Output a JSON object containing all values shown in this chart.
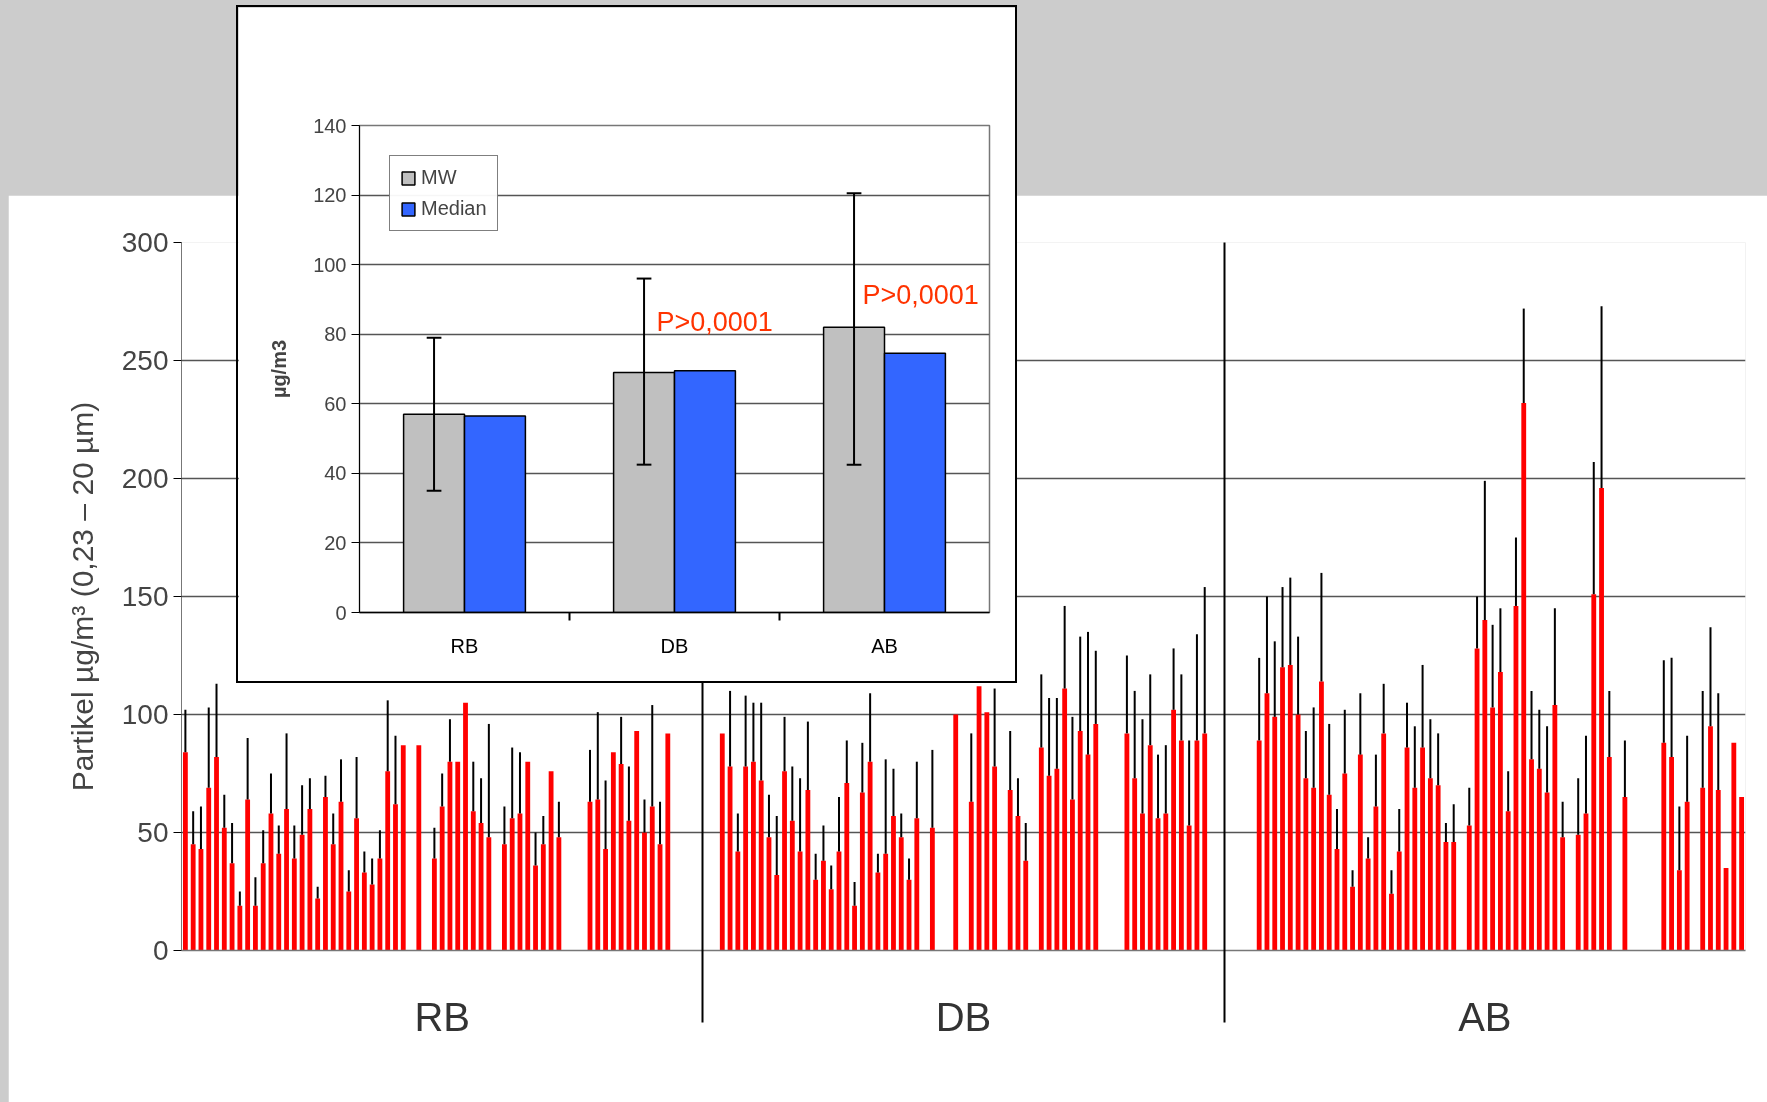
{
  "chart_data": [
    {
      "type": "bar",
      "ylabel": "Partikel µg/m³ (0,23 – 20 µm)",
      "categories": [
        "RB",
        "DB",
        "AB"
      ],
      "ylim": [
        0,
        300
      ],
      "yticks": [
        0,
        50,
        100,
        150,
        200,
        250,
        300
      ],
      "grid": "y",
      "series": [
        {
          "color": "#ff0000",
          "values": [
            84,
            null,
            null
          ],
          "errors": [
            [
              84,
              102
            ],
            null,
            null
          ]
        },
        {
          "color": "#ff0000",
          "values": [
            45,
            null,
            null
          ],
          "errors": [
            [
              45,
              59
            ],
            null,
            null
          ]
        },
        {
          "color": "#ff0000",
          "values": [
            43,
            92,
            null
          ],
          "errors": [
            [
              43,
              61
            ],
            null,
            null
          ]
        },
        {
          "color": "#ff0000",
          "values": [
            69,
            78,
            null
          ],
          "errors": [
            [
              69,
              103
            ],
            [
              78,
              110
            ],
            null
          ]
        },
        {
          "color": "#ff0000",
          "values": [
            82,
            42,
            89
          ],
          "errors": [
            [
              82,
              113
            ],
            [
              42,
              58
            ],
            [
              89,
              124
            ]
          ]
        },
        {
          "color": "#ff0000",
          "values": [
            52,
            78,
            109
          ],
          "errors": [
            [
              52,
              66
            ],
            [
              78,
              108
            ],
            [
              109,
              150
            ]
          ]
        },
        {
          "color": "#ff0000",
          "values": [
            37,
            80,
            99
          ],
          "errors": [
            [
              37,
              54
            ],
            [
              80,
              105
            ],
            [
              99,
              131
            ]
          ]
        },
        {
          "color": "#ff0000",
          "values": [
            19,
            72,
            120
          ],
          "errors": [
            [
              19,
              25
            ],
            [
              72,
              105
            ],
            [
              120,
              154
            ]
          ]
        },
        {
          "color": "#ff0000",
          "values": [
            64,
            48,
            121
          ],
          "errors": [
            [
              64,
              90
            ],
            [
              48,
              66
            ],
            [
              121,
              158
            ]
          ]
        },
        {
          "color": "#ff0000",
          "values": [
            19,
            32,
            100
          ],
          "errors": [
            [
              19,
              31
            ],
            [
              32,
              57
            ],
            [
              100,
              133
            ]
          ]
        },
        {
          "color": "#ff0000",
          "values": [
            37,
            76,
            73
          ],
          "errors": [
            [
              37,
              51
            ],
            [
              76,
              99
            ],
            [
              73,
              93
            ]
          ]
        },
        {
          "color": "#ff0000",
          "values": [
            58,
            55,
            69
          ],
          "errors": [
            [
              58,
              75
            ],
            [
              55,
              78
            ],
            [
              69,
              103
            ]
          ]
        },
        {
          "color": "#ff0000",
          "values": [
            41,
            42,
            114
          ],
          "errors": [
            [
              41,
              53
            ],
            [
              42,
              73
            ],
            [
              114,
              160
            ]
          ]
        },
        {
          "color": "#ff0000",
          "values": [
            60,
            68,
            66
          ],
          "errors": [
            [
              60,
              92
            ],
            [
              68,
              97
            ],
            [
              66,
              96
            ]
          ]
        },
        {
          "color": "#ff0000",
          "values": [
            39,
            30,
            43
          ],
          "errors": [
            [
              39,
              53
            ],
            [
              30,
              41
            ],
            [
              43,
              60
            ]
          ]
        },
        {
          "color": "#ff0000",
          "values": [
            49,
            38,
            75
          ],
          "errors": [
            [
              49,
              70
            ],
            [
              38,
              53
            ],
            [
              75,
              102
            ]
          ]
        },
        {
          "color": "#ff0000",
          "values": [
            60,
            26,
            27
          ],
          "errors": [
            [
              60,
              73
            ],
            [
              26,
              36
            ],
            [
              27,
              34
            ]
          ]
        },
        {
          "color": "#ff0000",
          "values": [
            22,
            42,
            83
          ],
          "errors": [
            [
              22,
              27
            ],
            [
              42,
              65
            ],
            [
              83,
              109
            ]
          ]
        },
        {
          "color": "#ff0000",
          "values": [
            65,
            71,
            39
          ],
          "errors": [
            [
              65,
              74
            ],
            [
              71,
              89
            ],
            [
              39,
              48
            ]
          ]
        },
        {
          "color": "#ff0000",
          "values": [
            45,
            19,
            61
          ],
          "errors": [
            [
              45,
              58
            ],
            [
              19,
              29
            ],
            [
              61,
              83
            ]
          ]
        },
        {
          "color": "#ff0000",
          "values": [
            63,
            67,
            92
          ],
          "errors": [
            [
              63,
              81
            ],
            [
              67,
              88
            ],
            [
              92,
              113
            ]
          ]
        },
        {
          "color": "#ff0000",
          "values": [
            25,
            80,
            24
          ],
          "errors": [
            [
              25,
              34
            ],
            [
              80,
              109
            ],
            [
              24,
              34
            ]
          ]
        },
        {
          "color": "#ff0000",
          "values": [
            56,
            33,
            42
          ],
          "errors": [
            [
              56,
              82
            ],
            [
              33,
              41
            ],
            [
              42,
              60
            ]
          ]
        },
        {
          "color": "#ff0000",
          "values": [
            33,
            41,
            86
          ],
          "errors": [
            [
              33,
              42
            ],
            [
              41,
              81
            ],
            [
              86,
              105
            ]
          ]
        },
        {
          "color": "#ff0000",
          "values": [
            28,
            57,
            69
          ],
          "errors": [
            [
              28,
              39
            ],
            [
              57,
              77
            ],
            [
              69,
              95
            ]
          ]
        },
        {
          "color": "#ff0000",
          "values": [
            39,
            48,
            86
          ],
          "errors": [
            [
              39,
              51
            ],
            [
              48,
              58
            ],
            [
              86,
              121
            ]
          ]
        },
        {
          "color": "#ff0000",
          "values": [
            76,
            30,
            73
          ],
          "errors": [
            [
              76,
              106
            ],
            [
              30,
              39
            ],
            [
              73,
              98
            ]
          ]
        },
        {
          "color": "#ff0000",
          "values": [
            62,
            56,
            70
          ],
          "errors": [
            [
              62,
              91
            ],
            [
              56,
              80
            ],
            [
              70,
              92
            ]
          ]
        },
        {
          "color": "#ff0000",
          "values": [
            87,
            null,
            46
          ],
          "errors": [
            null,
            null,
            [
              46,
              54
            ]
          ]
        },
        {
          "color": "#ff0000",
          "values": [
            null,
            52,
            46
          ],
          "errors": [
            null,
            [
              52,
              85
            ],
            [
              46,
              62
            ]
          ]
        },
        {
          "color": "#ff0000",
          "values": [
            87,
            null,
            null
          ],
          "errors": [
            null,
            null,
            null
          ]
        },
        {
          "color": "#ff0000",
          "values": [
            null,
            null,
            53
          ],
          "errors": [
            null,
            null,
            [
              53,
              69
            ]
          ]
        },
        {
          "color": "#ff0000",
          "values": [
            39,
            100,
            128
          ],
          "errors": [
            [
              39,
              52
            ],
            null,
            [
              128,
              150
            ]
          ]
        },
        {
          "color": "#ff0000",
          "values": [
            61,
            null,
            140
          ],
          "errors": [
            [
              61,
              75
            ],
            null,
            [
              140,
              199
            ]
          ]
        },
        {
          "color": "#ff0000",
          "values": [
            80,
            63,
            103
          ],
          "errors": [
            [
              80,
              98
            ],
            [
              63,
              92
            ],
            [
              103,
              138
            ]
          ]
        },
        {
          "color": "#ff0000",
          "values": [
            80,
            112,
            118
          ],
          "errors": [
            null,
            null,
            [
              118,
              145
            ]
          ]
        },
        {
          "color": "#ff0000",
          "values": [
            105,
            101,
            59
          ],
          "errors": [
            null,
            null,
            [
              59,
              76
            ]
          ]
        },
        {
          "color": "#ff0000",
          "values": [
            59,
            78,
            146
          ],
          "errors": [
            [
              59,
              80
            ],
            [
              78,
              111
            ],
            [
              146,
              175
            ]
          ]
        },
        {
          "color": "#ff0000",
          "values": [
            54,
            null,
            232
          ],
          "errors": [
            [
              54,
              73
            ],
            null,
            [
              232,
              272
            ]
          ]
        },
        {
          "color": "#ff0000",
          "values": [
            48,
            68,
            81
          ],
          "errors": [
            [
              48,
              96
            ],
            [
              68,
              93
            ],
            [
              81,
              110
            ]
          ]
        },
        {
          "color": "#ff0000",
          "values": [
            null,
            57,
            77
          ],
          "errors": [
            null,
            [
              57,
              73
            ],
            [
              77,
              102
            ]
          ]
        },
        {
          "color": "#ff0000",
          "values": [
            45,
            38,
            67
          ],
          "errors": [
            [
              45,
              61
            ],
            [
              38,
              54
            ],
            [
              67,
              95
            ]
          ]
        },
        {
          "color": "#ff0000",
          "values": [
            56,
            null,
            104
          ],
          "errors": [
            [
              56,
              86
            ],
            null,
            [
              104,
              145
            ]
          ]
        },
        {
          "color": "#ff0000",
          "values": [
            58,
            86,
            48
          ],
          "errors": [
            [
              58,
              84
            ],
            [
              86,
              117
            ],
            [
              48,
              63
            ]
          ]
        },
        {
          "color": "#ff0000",
          "values": [
            80,
            74,
            null
          ],
          "errors": [
            null,
            [
              74,
              107
            ],
            null
          ]
        },
        {
          "color": "#ff0000",
          "values": [
            36,
            77,
            49
          ],
          "errors": [
            [
              36,
              50
            ],
            [
              77,
              107
            ],
            [
              49,
              73
            ]
          ]
        },
        {
          "color": "#ff0000",
          "values": [
            45,
            111,
            58
          ],
          "errors": [
            [
              45,
              57
            ],
            [
              111,
              146
            ],
            [
              58,
              91
            ]
          ]
        },
        {
          "color": "#ff0000",
          "values": [
            76,
            64,
            151
          ],
          "errors": [
            null,
            [
              64,
              99
            ],
            [
              151,
              207
            ]
          ]
        },
        {
          "color": "#ff0000",
          "values": [
            48,
            93,
            196
          ],
          "errors": [
            [
              48,
              63
            ],
            [
              93,
              133
            ],
            [
              196,
              273
            ]
          ]
        },
        {
          "color": "#ff0000",
          "values": [
            null,
            83,
            82
          ],
          "errors": [
            null,
            [
              83,
              135
            ],
            [
              82,
              110
            ]
          ]
        },
        {
          "color": "#ff0000",
          "values": [
            null,
            96,
            null
          ],
          "errors": [
            null,
            [
              96,
              127
            ],
            null
          ]
        },
        {
          "color": "#ff0000",
          "values": [
            null,
            null,
            65
          ],
          "errors": [
            null,
            null,
            [
              65,
              89
            ]
          ]
        },
        {
          "color": "#ff0000",
          "values": [
            63,
            null,
            null
          ],
          "errors": [
            [
              63,
              85
            ],
            null,
            null
          ]
        },
        {
          "color": "#ff0000",
          "values": [
            64,
            null,
            null
          ],
          "errors": [
            [
              64,
              101
            ],
            null,
            null
          ]
        },
        {
          "color": "#ff0000",
          "values": [
            43,
            92,
            null
          ],
          "errors": [
            [
              43,
              72
            ],
            [
              92,
              125
            ],
            null
          ]
        },
        {
          "color": "#ff0000",
          "values": [
            84,
            73,
            null
          ],
          "errors": [
            null,
            [
              73,
              110
            ],
            null
          ]
        },
        {
          "color": "#ff0000",
          "values": [
            79,
            58,
            88
          ],
          "errors": [
            [
              79,
              99
            ],
            [
              58,
              98
            ],
            [
              88,
              123
            ]
          ]
        },
        {
          "color": "#ff0000",
          "values": [
            55,
            87,
            82
          ],
          "errors": [
            [
              55,
              78
            ],
            [
              87,
              117
            ],
            [
              82,
              124
            ]
          ]
        },
        {
          "color": "#ff0000",
          "values": [
            93,
            56,
            34
          ],
          "errors": [
            null,
            [
              56,
              83
            ],
            [
              34,
              61
            ]
          ]
        },
        {
          "color": "#ff0000",
          "values": [
            50,
            58,
            63
          ],
          "errors": [
            [
              50,
              64
            ],
            [
              58,
              87
            ],
            [
              63,
              91
            ]
          ]
        },
        {
          "color": "#ff0000",
          "values": [
            61,
            102,
            null
          ],
          "errors": [
            [
              61,
              104
            ],
            [
              102,
              128
            ],
            null
          ]
        },
        {
          "color": "#ff0000",
          "values": [
            45,
            89,
            69
          ],
          "errors": [
            [
              45,
              63
            ],
            [
              89,
              117
            ],
            [
              69,
              110
            ]
          ]
        },
        {
          "color": "#ff0000",
          "values": [
            92,
            53,
            95
          ],
          "errors": [
            null,
            [
              53,
              89
            ],
            [
              95,
              137
            ]
          ]
        },
        {
          "color": "#ff0000",
          "values": [
            null,
            89,
            68
          ],
          "errors": [
            null,
            [
              89,
              134
            ],
            [
              68,
              109
            ]
          ]
        },
        {
          "color": "#ff0000",
          "values": [
            null,
            92,
            35
          ],
          "errors": [
            null,
            [
              92,
              154
            ],
            null
          ]
        },
        {
          "color": "#ff0000",
          "values": [
            null,
            null,
            88
          ],
          "errors": [
            null,
            null,
            null
          ]
        },
        {
          "color": "#ff0000",
          "values": [
            null,
            null,
            65
          ],
          "errors": [
            null,
            null,
            null
          ]
        }
      ]
    },
    {
      "type": "bar",
      "ylabel": "µg/m3",
      "categories": [
        "RB",
        "DB",
        "AB"
      ],
      "ylim": [
        0,
        140
      ],
      "yticks": [
        0,
        20,
        40,
        60,
        80,
        100,
        120,
        140
      ],
      "grid": "y",
      "legend": "top left",
      "series": [
        {
          "name": "MW",
          "color": "#c0c0c0",
          "values": [
            57,
            69,
            82
          ],
          "errors": [
            [
              35,
              79
            ],
            [
              42.5,
              96
            ],
            [
              42.5,
              120.5
            ]
          ]
        },
        {
          "name": "Median",
          "color": "#3366ff",
          "values": [
            56.5,
            69.5,
            74.5
          ]
        }
      ],
      "annotations": [
        "P>0,0001",
        "P>0,0001"
      ]
    }
  ]
}
